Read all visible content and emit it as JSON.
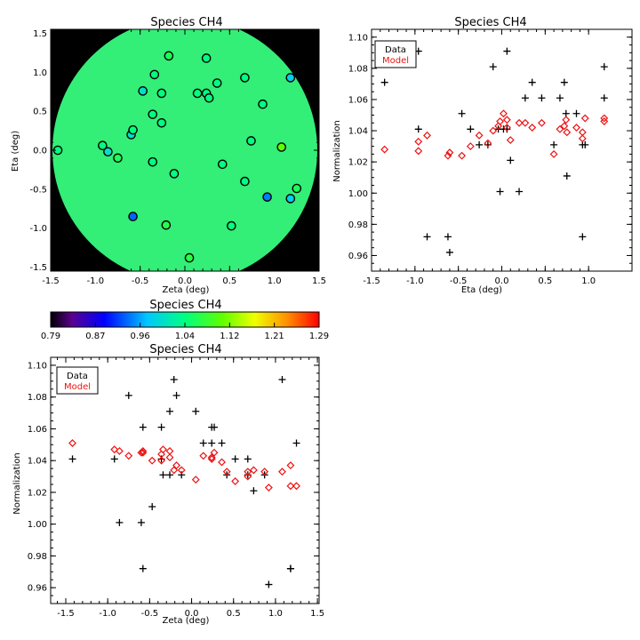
{
  "chart_data": [
    {
      "type": "scatter",
      "title": "Species CH4",
      "xlabel": "Zeta (deg)",
      "ylabel": "Eta (deg)",
      "xlim": [
        -1.5,
        1.5
      ],
      "ylim": [
        -1.55,
        1.55
      ],
      "xticks": [
        -1.5,
        -1.0,
        -0.5,
        0.0,
        0.5,
        1.0,
        1.5
      ],
      "yticks": [
        -1.5,
        -1.0,
        -0.5,
        0.0,
        0.5,
        1.0,
        1.5
      ],
      "background": "#000000",
      "field_color": "#33ee77",
      "field_radius": 1.48,
      "points": [
        {
          "x": -1.42,
          "y": 0.0,
          "v": 1.04
        },
        {
          "x": -0.92,
          "y": 0.06,
          "v": 1.04
        },
        {
          "x": -0.86,
          "y": -0.02,
          "v": 1.0
        },
        {
          "x": -0.75,
          "y": -0.1,
          "v": 1.06
        },
        {
          "x": -0.6,
          "y": 0.2,
          "v": 1.0
        },
        {
          "x": -0.58,
          "y": 0.26,
          "v": 1.04
        },
        {
          "x": -0.58,
          "y": -0.85,
          "v": 0.93
        },
        {
          "x": -0.47,
          "y": 0.76,
          "v": 1.0
        },
        {
          "x": -0.36,
          "y": 0.46,
          "v": 1.04
        },
        {
          "x": -0.34,
          "y": 0.97,
          "v": 1.04
        },
        {
          "x": -0.36,
          "y": -0.15,
          "v": 1.04
        },
        {
          "x": -0.26,
          "y": 0.73,
          "v": 1.04
        },
        {
          "x": -0.26,
          "y": 0.35,
          "v": 1.04
        },
        {
          "x": -0.21,
          "y": -0.96,
          "v": 1.07
        },
        {
          "x": -0.18,
          "y": 1.21,
          "v": 1.06
        },
        {
          "x": -0.12,
          "y": -0.3,
          "v": 1.04
        },
        {
          "x": 0.05,
          "y": -1.38,
          "v": 1.07
        },
        {
          "x": 0.14,
          "y": 0.73,
          "v": 1.04
        },
        {
          "x": 0.24,
          "y": 0.73,
          "v": 1.04
        },
        {
          "x": 0.27,
          "y": 0.67,
          "v": 1.04
        },
        {
          "x": 0.24,
          "y": 1.18,
          "v": 1.04
        },
        {
          "x": 0.36,
          "y": 0.86,
          "v": 1.04
        },
        {
          "x": 0.42,
          "y": -0.18,
          "v": 1.04
        },
        {
          "x": 0.52,
          "y": -0.97,
          "v": 1.04
        },
        {
          "x": 0.67,
          "y": -0.4,
          "v": 1.04
        },
        {
          "x": 0.67,
          "y": 0.93,
          "v": 1.04
        },
        {
          "x": 0.74,
          "y": 0.12,
          "v": 1.04
        },
        {
          "x": 0.87,
          "y": 0.59,
          "v": 1.04
        },
        {
          "x": 0.92,
          "y": -0.6,
          "v": 0.94
        },
        {
          "x": 1.08,
          "y": 0.04,
          "v": 1.11
        },
        {
          "x": 1.18,
          "y": 0.93,
          "v": 0.98
        },
        {
          "x": 1.18,
          "y": -0.62,
          "v": 0.98
        },
        {
          "x": 1.25,
          "y": -0.49,
          "v": 1.06
        }
      ]
    },
    {
      "type": "colorbar",
      "title": "Species CH4",
      "range": [
        0.79,
        1.29
      ],
      "tick_labels": [
        "0.79",
        "0.87",
        "0.96",
        "1.04",
        "1.12",
        "1.21",
        "1.29"
      ]
    },
    {
      "type": "scatter",
      "title": "Species CH4",
      "xlabel": "Eta (deg)",
      "ylabel": "Normalization",
      "xlim": [
        -1.5,
        1.5
      ],
      "ylim": [
        0.95,
        1.105
      ],
      "xticks": [
        -1.5,
        -1.0,
        -0.5,
        0.0,
        0.5,
        1.0
      ],
      "yticks": [
        0.96,
        0.98,
        1.0,
        1.02,
        1.04,
        1.06,
        1.08,
        1.1
      ],
      "legend": [
        "Data",
        "Model"
      ],
      "legend_placement": "top-left",
      "series": [
        {
          "name": "Data",
          "marker": "plus",
          "color": "#000000",
          "points": [
            [
              -1.35,
              1.071
            ],
            [
              -0.96,
              1.091
            ],
            [
              -0.96,
              1.041
            ],
            [
              -0.86,
              0.972
            ],
            [
              -0.62,
              0.972
            ],
            [
              -0.6,
              0.962
            ],
            [
              -0.46,
              1.051
            ],
            [
              -0.36,
              1.041
            ],
            [
              -0.26,
              1.031
            ],
            [
              -0.16,
              1.031
            ],
            [
              -0.1,
              1.081
            ],
            [
              -0.04,
              1.041
            ],
            [
              -0.02,
              1.001
            ],
            [
              0.02,
              1.041
            ],
            [
              0.06,
              1.091
            ],
            [
              0.06,
              1.041
            ],
            [
              0.1,
              1.021
            ],
            [
              0.2,
              1.001
            ],
            [
              0.27,
              1.061
            ],
            [
              0.35,
              1.071
            ],
            [
              0.46,
              1.061
            ],
            [
              0.6,
              1.031
            ],
            [
              0.67,
              1.061
            ],
            [
              0.72,
              1.071
            ],
            [
              0.74,
              1.051
            ],
            [
              0.75,
              1.011
            ],
            [
              0.86,
              1.051
            ],
            [
              0.93,
              0.972
            ],
            [
              0.93,
              1.031
            ],
            [
              0.96,
              1.031
            ],
            [
              1.18,
              1.081
            ],
            [
              1.18,
              1.061
            ]
          ]
        },
        {
          "name": "Model",
          "marker": "diamond",
          "color": "#ee1111",
          "points": [
            [
              -1.35,
              1.028
            ],
            [
              -0.96,
              1.033
            ],
            [
              -0.96,
              1.027
            ],
            [
              -0.86,
              1.037
            ],
            [
              -0.62,
              1.024
            ],
            [
              -0.6,
              1.026
            ],
            [
              -0.46,
              1.024
            ],
            [
              -0.36,
              1.03
            ],
            [
              -0.26,
              1.037
            ],
            [
              -0.16,
              1.032
            ],
            [
              -0.1,
              1.04
            ],
            [
              -0.04,
              1.043
            ],
            [
              -0.02,
              1.046
            ],
            [
              0.02,
              1.051
            ],
            [
              0.06,
              1.047
            ],
            [
              0.06,
              1.042
            ],
            [
              0.1,
              1.034
            ],
            [
              0.2,
              1.045
            ],
            [
              0.27,
              1.045
            ],
            [
              0.35,
              1.042
            ],
            [
              0.46,
              1.045
            ],
            [
              0.6,
              1.025
            ],
            [
              0.67,
              1.041
            ],
            [
              0.72,
              1.043
            ],
            [
              0.74,
              1.047
            ],
            [
              0.75,
              1.039
            ],
            [
              0.86,
              1.042
            ],
            [
              0.93,
              1.035
            ],
            [
              0.93,
              1.039
            ],
            [
              0.96,
              1.048
            ],
            [
              1.18,
              1.046
            ],
            [
              1.18,
              1.048
            ]
          ]
        }
      ]
    },
    {
      "type": "scatter",
      "title": "Species CH4",
      "xlabel": "Zeta (deg)",
      "ylabel": "Normalization",
      "xlim": [
        -1.68,
        1.52
      ],
      "ylim": [
        0.95,
        1.105
      ],
      "xticks": [
        -1.5,
        -1.0,
        -0.5,
        0.0,
        0.5,
        1.0,
        1.5
      ],
      "yticks": [
        0.96,
        0.98,
        1.0,
        1.02,
        1.04,
        1.06,
        1.08,
        1.1
      ],
      "legend": [
        "Data",
        "Model"
      ],
      "legend_placement": "top-left",
      "series": [
        {
          "name": "Data",
          "marker": "plus",
          "color": "#000000",
          "points": [
            [
              -1.42,
              1.041
            ],
            [
              -0.92,
              1.041
            ],
            [
              -0.86,
              1.001
            ],
            [
              -0.75,
              1.081
            ],
            [
              -0.6,
              1.001
            ],
            [
              -0.58,
              1.061
            ],
            [
              -0.58,
              0.972
            ],
            [
              -0.47,
              1.011
            ],
            [
              -0.36,
              1.041
            ],
            [
              -0.34,
              1.031
            ],
            [
              -0.36,
              1.061
            ],
            [
              -0.26,
              1.031
            ],
            [
              -0.26,
              1.071
            ],
            [
              -0.21,
              1.091
            ],
            [
              -0.18,
              1.081
            ],
            [
              -0.12,
              1.031
            ],
            [
              0.05,
              1.071
            ],
            [
              0.14,
              1.051
            ],
            [
              0.24,
              1.061
            ],
            [
              0.27,
              1.061
            ],
            [
              0.24,
              1.051
            ],
            [
              0.36,
              1.051
            ],
            [
              0.42,
              1.031
            ],
            [
              0.52,
              1.041
            ],
            [
              0.67,
              1.041
            ],
            [
              0.67,
              1.031
            ],
            [
              0.74,
              1.021
            ],
            [
              0.87,
              1.031
            ],
            [
              0.92,
              0.962
            ],
            [
              1.08,
              1.091
            ],
            [
              1.18,
              0.972
            ],
            [
              1.18,
              0.972
            ],
            [
              1.25,
              1.051
            ]
          ]
        },
        {
          "name": "Model",
          "marker": "diamond",
          "color": "#ee1111",
          "points": [
            [
              -1.42,
              1.051
            ],
            [
              -0.92,
              1.047
            ],
            [
              -0.86,
              1.046
            ],
            [
              -0.75,
              1.043
            ],
            [
              -0.6,
              1.045
            ],
            [
              -0.58,
              1.046
            ],
            [
              -0.58,
              1.045
            ],
            [
              -0.47,
              1.04
            ],
            [
              -0.36,
              1.04
            ],
            [
              -0.34,
              1.047
            ],
            [
              -0.36,
              1.044
            ],
            [
              -0.26,
              1.042
            ],
            [
              -0.26,
              1.046
            ],
            [
              -0.21,
              1.034
            ],
            [
              -0.18,
              1.037
            ],
            [
              -0.12,
              1.034
            ],
            [
              0.05,
              1.028
            ],
            [
              0.14,
              1.043
            ],
            [
              0.24,
              1.041
            ],
            [
              0.27,
              1.045
            ],
            [
              0.24,
              1.042
            ],
            [
              0.36,
              1.039
            ],
            [
              0.42,
              1.033
            ],
            [
              0.52,
              1.027
            ],
            [
              0.67,
              1.033
            ],
            [
              0.67,
              1.03
            ],
            [
              0.74,
              1.034
            ],
            [
              0.87,
              1.033
            ],
            [
              0.92,
              1.023
            ],
            [
              1.08,
              1.033
            ],
            [
              1.18,
              1.037
            ],
            [
              1.18,
              1.024
            ],
            [
              1.25,
              1.024
            ]
          ]
        }
      ]
    }
  ]
}
